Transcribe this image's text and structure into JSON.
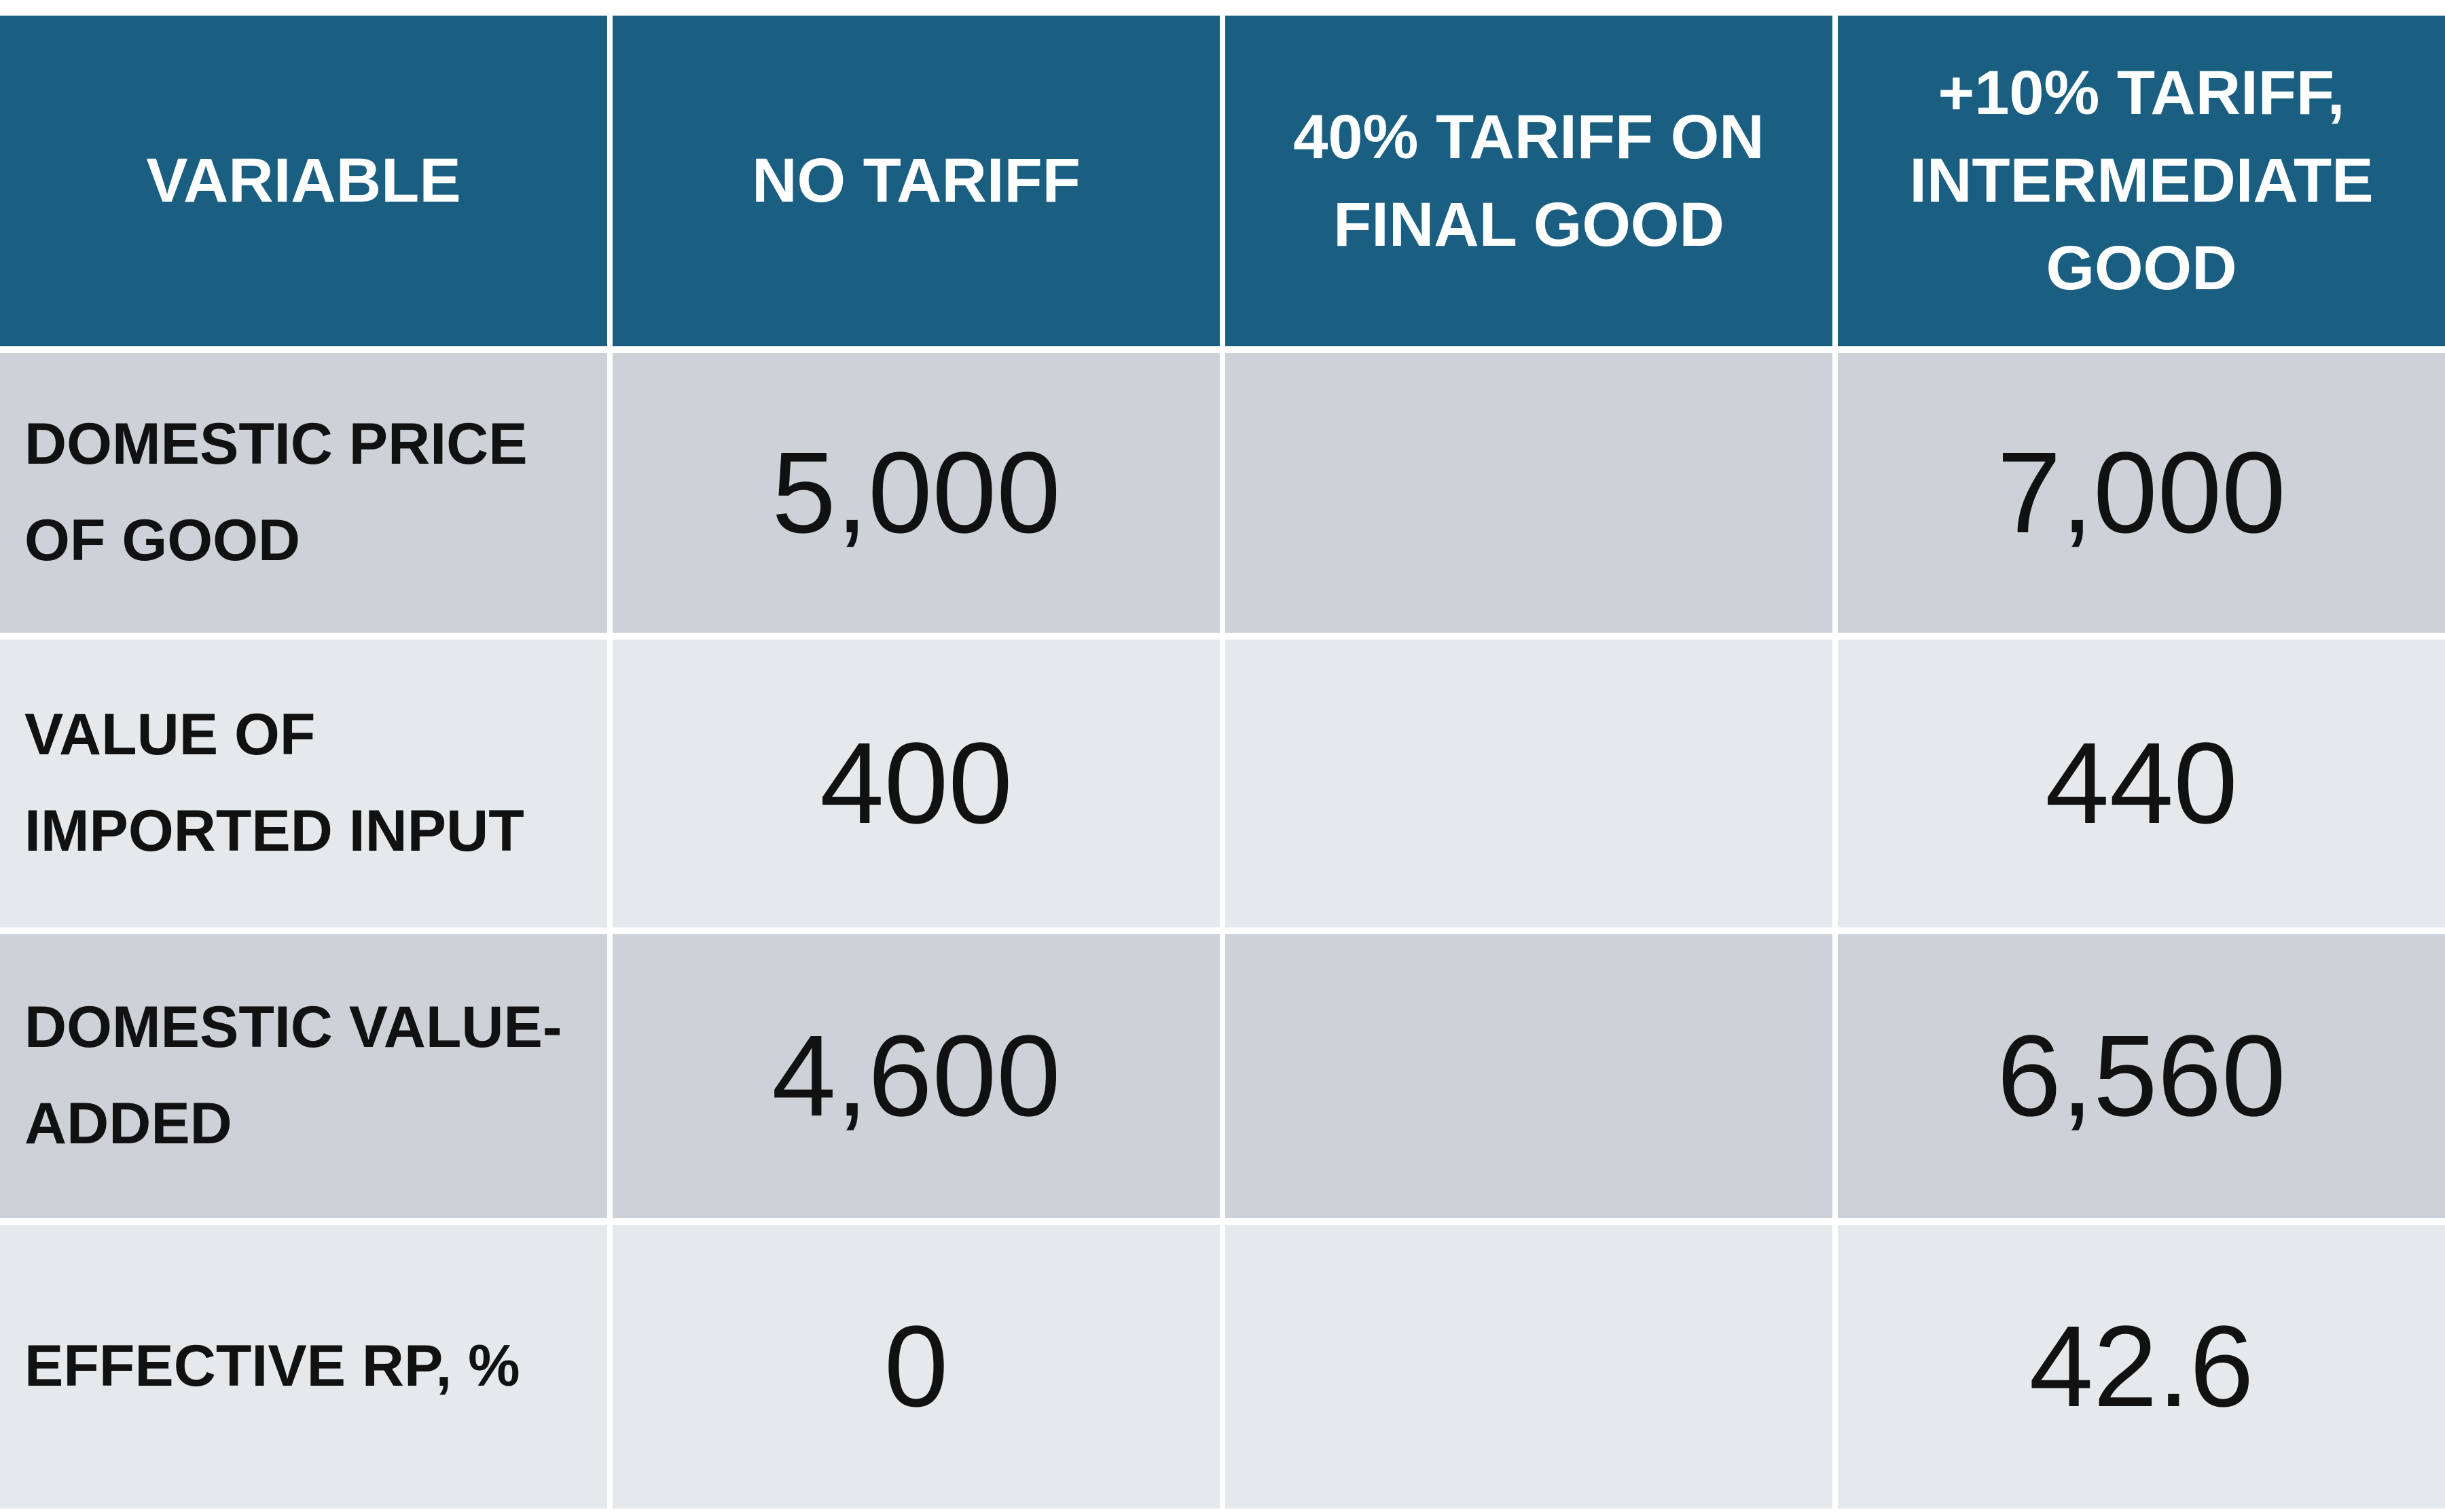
{
  "table": {
    "header": [
      "VARIABLE",
      "NO TARIFF",
      "40% TARIFF ON FINAL GOOD",
      "+10% TARIFF, INTERMEDIATE GOOD"
    ],
    "rows": [
      {
        "variable": "DOMESTIC PRICE OF GOOD",
        "no_tariff": "5,000",
        "intermediate_tariff": "7,000"
      },
      {
        "variable": "VALUE OF IMPORTED INPUT",
        "no_tariff": "400",
        "intermediate_tariff": "440"
      },
      {
        "variable": "DOMESTIC VALUE-ADDED",
        "no_tariff": "4,600",
        "intermediate_tariff": "6,560"
      },
      {
        "variable": "EFFECTIVE RP, %",
        "no_tariff": "0",
        "intermediate_tariff": "42.6"
      }
    ]
  }
}
